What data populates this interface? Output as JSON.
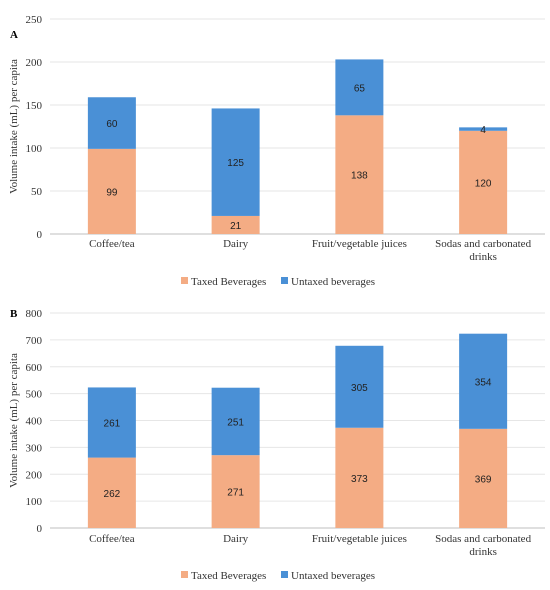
{
  "colors": {
    "taxed": "#f4ac84",
    "untaxed": "#4a90d6"
  },
  "chart_data": [
    {
      "type": "bar",
      "stacked": true,
      "panel_label": "A",
      "categories": [
        [
          "Coffee/tea"
        ],
        [
          "Dairy"
        ],
        [
          "Fruit/vegetable juices"
        ],
        [
          "Sodas and carbonated",
          "drinks"
        ]
      ],
      "series": [
        {
          "name": "Taxed Beverages",
          "values": [
            99,
            21,
            138,
            120
          ]
        },
        {
          "name": "Untaxed beverages",
          "values": [
            60,
            125,
            65,
            4
          ]
        }
      ],
      "ylabel": "Volume intake (mL) per capita",
      "ylim": [
        0,
        250
      ],
      "yticks": [
        0,
        50,
        100,
        150,
        200,
        250
      ],
      "grid": true,
      "legend": "bottom"
    },
    {
      "type": "bar",
      "stacked": true,
      "panel_label": "B",
      "categories": [
        [
          "Coffee/tea"
        ],
        [
          "Dairy"
        ],
        [
          "Fruit/vegetable juices"
        ],
        [
          "Sodas and carbonated",
          "drinks"
        ]
      ],
      "series": [
        {
          "name": "Taxed Beverages",
          "values": [
            262,
            271,
            373,
            369
          ]
        },
        {
          "name": "Untaxed beverages",
          "values": [
            261,
            251,
            305,
            354
          ]
        }
      ],
      "ylabel": "Volume intake (mL) per capita",
      "ylim": [
        0,
        800
      ],
      "yticks": [
        0,
        100,
        200,
        300,
        400,
        500,
        600,
        700,
        800
      ],
      "grid": true,
      "legend": "bottom"
    }
  ]
}
